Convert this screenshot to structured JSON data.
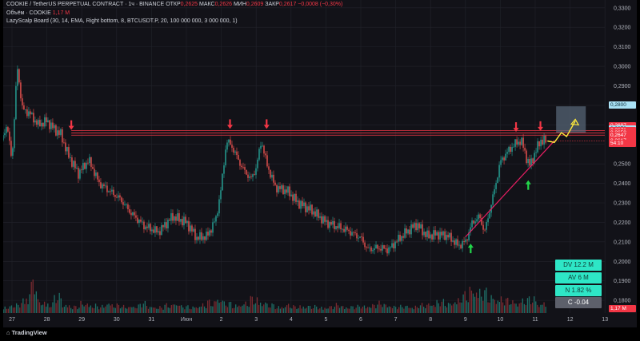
{
  "header": {
    "symbol": "COOKIE / TetherUS PERPETUAL CONTRACT · 1ч · BINANCE",
    "open_label": "ОТКР",
    "open_value": "0,2625",
    "high_label": "МАКС",
    "high_value": "0,2626",
    "low_label": "МИН",
    "low_value": "0,2609",
    "close_label": "ЗАКР",
    "close_value": "0,2617",
    "change": "−0,0008 (−0,30%)",
    "volume_label": "Объём · COOKIE",
    "volume_value": "1,17 M",
    "indicator": "LazyScalp Board (30, 14, EMA, Right bottom, 8, BTCUSDT.P, 20, 100 000 000, 3 000 000, 1)"
  },
  "stats": {
    "dv": "DV 12.2 M",
    "av": "AV 6 M",
    "n": "N 1.82 %",
    "c": "C -0.04"
  },
  "price_tags": [
    {
      "text": "0,2800",
      "bg": "#a9e2f5",
      "fg": "#0b2a36"
    },
    {
      "text": "0,2697",
      "bg": "#f23645",
      "fg": "#ffffff"
    },
    {
      "text": "0,2679",
      "bg": "#a9e2f5",
      "fg": "#0b2a36"
    },
    {
      "text": "0,2671",
      "bg": "#f23645",
      "fg": "#ffffff"
    },
    {
      "text": "0,2658",
      "bg": "#f23645",
      "fg": "#ffffff"
    },
    {
      "text": "0,2647",
      "bg": "#f23645",
      "fg": "#ffffff"
    },
    {
      "text": "0,2617",
      "bg": "#f23645",
      "fg": "#ffffff"
    },
    {
      "text": "54:10",
      "bg": "#f23645",
      "fg": "#ffffff"
    }
  ],
  "volume_tag": {
    "text": "1,17 M",
    "bg": "#f23645",
    "fg": "#ffffff"
  },
  "brand": "TradingView",
  "colors": {
    "up": "#26a69a",
    "down": "#ef5350",
    "vol_up": "#1e6e66",
    "vol_down": "#7a2a30",
    "background": "#121218",
    "grid": "#22232b",
    "resistance": "#f23645",
    "trendline": "#e91e63",
    "arrow_down": "#f23645",
    "arrow_up": "#22d64a",
    "projection": "#ffeb3b",
    "target_box": "#5a6a7a"
  },
  "chart_data": {
    "type": "candlestick",
    "y_axis": {
      "ticks": [
        "0,3300",
        "0,3200",
        "0,3100",
        "0,3000",
        "0,2900",
        "0,2800",
        "0,2700",
        "0,2600",
        "0,2500",
        "0,2400",
        "0,2300",
        "0,2200",
        "0,2100",
        "0,2000",
        "0,1900",
        "0,1800"
      ],
      "range": [
        0.1735,
        0.334
      ]
    },
    "x_axis": {
      "ticks": [
        "27",
        "28",
        "29",
        "30",
        "31",
        "Июн",
        "2",
        "3",
        "4",
        "5",
        "6",
        "7",
        "8",
        "9",
        "10",
        "11",
        "12",
        "13"
      ]
    },
    "price_path": [
      [
        26.7,
        0.262
      ],
      [
        26.85,
        0.27
      ],
      [
        27.0,
        0.252
      ],
      [
        27.15,
        0.3
      ],
      [
        27.3,
        0.278
      ],
      [
        27.5,
        0.276
      ],
      [
        27.75,
        0.27
      ],
      [
        28.0,
        0.272
      ],
      [
        28.2,
        0.268
      ],
      [
        28.4,
        0.265
      ],
      [
        28.6,
        0.255
      ],
      [
        28.9,
        0.245
      ],
      [
        29.2,
        0.252
      ],
      [
        29.5,
        0.24
      ],
      [
        29.8,
        0.236
      ],
      [
        30.1,
        0.232
      ],
      [
        30.4,
        0.225
      ],
      [
        30.8,
        0.218
      ],
      [
        31.2,
        0.215
      ],
      [
        31.6,
        0.223
      ],
      [
        32.0,
        0.22
      ],
      [
        32.3,
        0.212
      ],
      [
        32.6,
        0.213
      ],
      [
        32.85,
        0.222
      ],
      [
        33.0,
        0.238
      ],
      [
        33.15,
        0.262
      ],
      [
        33.3,
        0.259
      ],
      [
        33.6,
        0.248
      ],
      [
        33.85,
        0.242
      ],
      [
        34.0,
        0.248
      ],
      [
        34.15,
        0.262
      ],
      [
        34.3,
        0.25
      ],
      [
        34.55,
        0.238
      ],
      [
        34.9,
        0.236
      ],
      [
        35.2,
        0.23
      ],
      [
        35.6,
        0.226
      ],
      [
        36.0,
        0.22
      ],
      [
        36.3,
        0.218
      ],
      [
        36.6,
        0.216
      ],
      [
        37.0,
        0.212
      ],
      [
        37.2,
        0.206
      ],
      [
        37.5,
        0.207
      ],
      [
        37.8,
        0.206
      ],
      [
        38.0,
        0.21
      ],
      [
        38.3,
        0.215
      ],
      [
        38.6,
        0.219
      ],
      [
        38.9,
        0.213
      ],
      [
        39.2,
        0.214
      ],
      [
        39.5,
        0.213
      ],
      [
        39.8,
        0.208
      ],
      [
        40.0,
        0.21
      ],
      [
        40.2,
        0.22
      ],
      [
        40.4,
        0.223
      ],
      [
        40.55,
        0.215
      ],
      [
        40.8,
        0.234
      ],
      [
        41.0,
        0.251
      ],
      [
        41.2,
        0.256
      ],
      [
        41.4,
        0.26
      ],
      [
        41.6,
        0.262
      ],
      [
        41.75,
        0.253
      ],
      [
        41.85,
        0.249
      ],
      [
        42.0,
        0.256
      ],
      [
        42.15,
        0.262
      ],
      [
        42.3,
        0.2617
      ]
    ],
    "volume_bars": [
      0.2,
      0.25,
      0.45,
      0.9,
      0.35,
      0.3,
      0.5,
      0.25,
      0.2,
      0.3,
      0.25,
      0.2,
      0.3,
      0.25,
      0.2,
      0.22,
      0.3,
      0.2,
      0.18,
      0.25,
      0.3,
      0.2,
      0.2,
      0.25,
      0.35,
      0.45,
      0.3,
      0.25,
      0.3,
      0.45,
      0.35,
      0.25,
      0.2,
      0.25,
      0.2,
      0.22,
      0.2,
      0.18,
      0.2,
      0.25,
      0.2,
      0.2,
      0.22,
      0.25,
      0.3,
      0.25,
      0.2,
      0.22,
      0.2,
      0.25,
      0.3,
      0.35,
      0.3,
      0.4,
      0.55,
      0.75,
      0.65,
      0.5,
      0.45,
      0.4,
      0.35,
      0.4,
      0.45,
      0.3
    ],
    "resistance_levels": [
      0.2671,
      0.2658,
      0.2647
    ],
    "resistance_start_x": 28.7,
    "trendline": [
      [
        40.0,
        0.2125
      ],
      [
        42.55,
        0.2618
      ]
    ],
    "down_arrows": [
      [
        28.7,
        0.267
      ],
      [
        33.25,
        0.2675
      ],
      [
        34.3,
        0.2675
      ],
      [
        41.45,
        0.266
      ],
      [
        42.15,
        0.2665
      ]
    ],
    "up_arrows": [
      [
        40.15,
        0.2095
      ],
      [
        41.8,
        0.242
      ]
    ],
    "projection": [
      [
        42.35,
        0.2617
      ],
      [
        42.55,
        0.261
      ],
      [
        42.75,
        0.266
      ],
      [
        42.9,
        0.264
      ],
      [
        43.15,
        0.272
      ]
    ],
    "target_box": {
      "x0": 42.6,
      "x1": 43.45,
      "y0": 0.266,
      "y1": 0.2795
    }
  }
}
